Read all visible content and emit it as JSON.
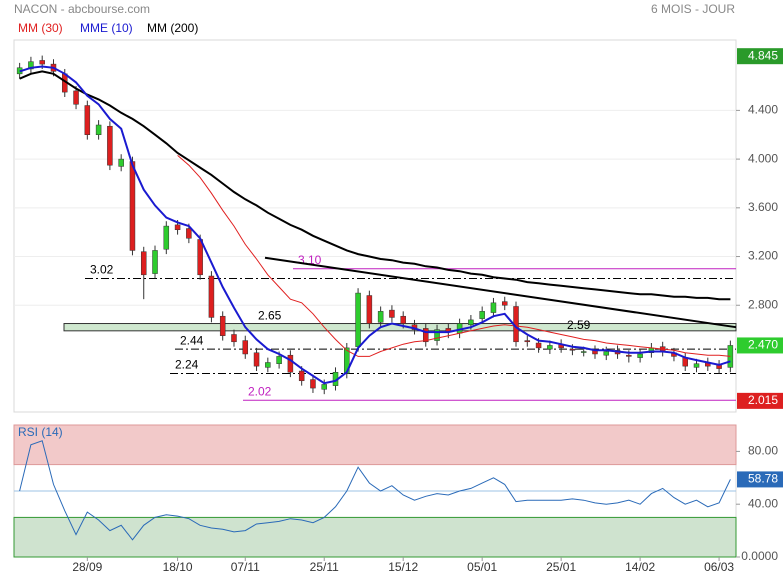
{
  "chart_data": {
    "type": "candlestick",
    "title": "NACON - abcbourse.com",
    "period": "6 MOIS - JOUR",
    "categories": [
      null,
      null,
      null,
      null,
      null,
      null,
      "28/09",
      null,
      null,
      null,
      null,
      null,
      null,
      null,
      "18/10",
      null,
      null,
      null,
      null,
      null,
      "07/11",
      null,
      null,
      null,
      null,
      null,
      null,
      "25/11",
      null,
      null,
      null,
      null,
      null,
      null,
      "15/12",
      null,
      null,
      null,
      null,
      null,
      null,
      "05/01",
      null,
      null,
      null,
      null,
      null,
      null,
      "25/01",
      null,
      null,
      null,
      null,
      null,
      null,
      "14/02",
      null,
      null,
      null,
      null,
      null,
      null,
      "06/03",
      null
    ],
    "open": [
      4.7,
      4.74,
      4.81,
      4.78,
      4.7,
      4.56,
      4.44,
      4.2,
      4.27,
      3.94,
      3.98,
      3.24,
      3.06,
      3.26,
      3.46,
      3.43,
      3.34,
      3.04,
      2.71,
      2.56,
      2.51,
      2.41,
      2.29,
      2.32,
      2.39,
      2.26,
      2.19,
      2.11,
      2.14,
      2.24,
      2.46,
      2.88,
      2.66,
      2.76,
      2.71,
      2.64,
      2.61,
      2.51,
      2.61,
      2.57,
      2.64,
      2.69,
      2.74,
      2.83,
      2.79,
      2.51,
      2.49,
      2.44,
      2.48,
      2.44,
      2.42,
      2.43,
      2.39,
      2.43,
      2.39,
      2.37,
      2.41,
      2.46,
      2.41,
      2.37,
      2.29,
      2.33,
      2.31,
      2.29
    ],
    "high": [
      4.79,
      4.84,
      4.85,
      4.82,
      4.74,
      4.6,
      4.48,
      4.32,
      4.31,
      4.04,
      4.02,
      3.28,
      3.29,
      3.49,
      3.5,
      3.47,
      3.38,
      3.08,
      2.75,
      2.6,
      2.55,
      2.45,
      2.37,
      2.42,
      2.43,
      2.3,
      2.23,
      2.19,
      2.29,
      2.49,
      2.94,
      2.92,
      2.79,
      2.8,
      2.75,
      2.68,
      2.65,
      2.64,
      2.65,
      2.69,
      2.72,
      2.79,
      2.86,
      2.87,
      2.83,
      2.55,
      2.53,
      2.51,
      2.52,
      2.48,
      2.46,
      2.47,
      2.46,
      2.47,
      2.43,
      2.44,
      2.49,
      2.5,
      2.45,
      2.41,
      2.36,
      2.37,
      2.35,
      2.51
    ],
    "low": [
      4.66,
      4.7,
      4.74,
      4.68,
      4.51,
      4.41,
      4.16,
      4.16,
      3.91,
      3.9,
      3.21,
      2.85,
      3.02,
      3.22,
      3.38,
      3.31,
      3.01,
      2.66,
      2.51,
      2.46,
      2.36,
      2.26,
      2.25,
      2.28,
      2.21,
      2.14,
      2.08,
      2.07,
      2.1,
      2.2,
      2.42,
      2.61,
      2.62,
      2.66,
      2.61,
      2.56,
      2.46,
      2.47,
      2.53,
      2.53,
      2.6,
      2.65,
      2.7,
      2.76,
      2.46,
      2.46,
      2.41,
      2.4,
      2.41,
      2.39,
      2.38,
      2.36,
      2.35,
      2.36,
      2.33,
      2.33,
      2.37,
      2.38,
      2.34,
      2.26,
      2.25,
      2.26,
      2.24,
      2.25
    ],
    "close": [
      4.75,
      4.8,
      4.78,
      4.72,
      4.55,
      4.45,
      4.2,
      4.28,
      3.95,
      4.0,
      3.25,
      3.05,
      3.25,
      3.45,
      3.42,
      3.35,
      3.05,
      2.7,
      2.55,
      2.5,
      2.4,
      2.3,
      2.33,
      2.38,
      2.25,
      2.18,
      2.12,
      2.15,
      2.25,
      2.45,
      2.9,
      2.65,
      2.75,
      2.7,
      2.65,
      2.6,
      2.5,
      2.6,
      2.58,
      2.65,
      2.68,
      2.75,
      2.82,
      2.8,
      2.5,
      2.5,
      2.45,
      2.47,
      2.45,
      2.43,
      2.42,
      2.4,
      2.42,
      2.4,
      2.38,
      2.4,
      2.45,
      2.42,
      2.38,
      2.3,
      2.32,
      2.3,
      2.28,
      2.47
    ],
    "up_color": "#2ecc2e",
    "down_color": "#dd1f1f",
    "ylim": [
      1.94,
      5.06
    ],
    "yticks": [
      {
        "value": 4.4,
        "label": "4.400"
      },
      {
        "value": 4.0,
        "label": "4.000"
      },
      {
        "value": 3.6,
        "label": "3.600"
      },
      {
        "value": 3.2,
        "label": "3.200"
      },
      {
        "value": 2.8,
        "label": "2.800"
      }
    ],
    "series": [
      {
        "name": "MM (30)",
        "color": "#e02020",
        "values": [
          null,
          null,
          null,
          null,
          null,
          null,
          null,
          null,
          null,
          null,
          null,
          null,
          null,
          null,
          4.03,
          3.95,
          3.85,
          3.72,
          3.58,
          3.45,
          3.3,
          3.18,
          3.05,
          2.95,
          2.85,
          2.82,
          2.73,
          2.62,
          2.52,
          2.43,
          2.38,
          2.38,
          2.42,
          2.45,
          2.48,
          2.5,
          2.51,
          2.53,
          2.55,
          2.57,
          2.59,
          2.61,
          2.63,
          2.64,
          2.63,
          2.62,
          2.6,
          2.58,
          2.56,
          2.54,
          2.52,
          2.51,
          2.49,
          2.48,
          2.47,
          2.46,
          2.45,
          2.44,
          2.43,
          2.41,
          2.4,
          2.39,
          2.39,
          2.38
        ]
      },
      {
        "name": "MME (10)",
        "color": "#1a1ad0",
        "values": [
          4.72,
          4.75,
          4.76,
          4.75,
          4.7,
          4.63,
          4.52,
          4.45,
          4.33,
          4.25,
          3.95,
          3.75,
          3.62,
          3.52,
          3.48,
          3.45,
          3.35,
          3.15,
          2.95,
          2.78,
          2.62,
          2.52,
          2.44,
          2.4,
          2.35,
          2.28,
          2.22,
          2.16,
          2.18,
          2.25,
          2.45,
          2.55,
          2.62,
          2.65,
          2.63,
          2.61,
          2.58,
          2.58,
          2.58,
          2.6,
          2.62,
          2.66,
          2.71,
          2.73,
          2.62,
          2.56,
          2.51,
          2.5,
          2.48,
          2.46,
          2.45,
          2.43,
          2.43,
          2.42,
          2.41,
          2.41,
          2.42,
          2.42,
          2.41,
          2.37,
          2.35,
          2.33,
          2.31,
          2.34
        ]
      },
      {
        "name": "MM (200)",
        "color": "#000000",
        "values": [
          4.66,
          4.7,
          4.72,
          4.7,
          4.64,
          4.58,
          4.53,
          4.49,
          4.44,
          4.38,
          4.33,
          4.27,
          4.2,
          4.13,
          4.05,
          3.99,
          3.93,
          3.87,
          3.8,
          3.73,
          3.67,
          3.62,
          3.56,
          3.51,
          3.46,
          3.42,
          3.37,
          3.33,
          3.29,
          3.25,
          3.22,
          3.2,
          3.18,
          3.17,
          3.15,
          3.14,
          3.12,
          3.11,
          3.09,
          3.08,
          3.06,
          3.05,
          3.03,
          3.02,
          3.01,
          2.99,
          2.98,
          2.97,
          2.96,
          2.95,
          2.94,
          2.93,
          2.92,
          2.91,
          2.9,
          2.89,
          2.89,
          2.88,
          2.87,
          2.87,
          2.86,
          2.86,
          2.85,
          2.85
        ]
      }
    ],
    "levels": [
      {
        "value": 3.02,
        "color": "#000000"
      },
      {
        "value": 2.44,
        "color": "#000000"
      },
      {
        "value": 2.24,
        "color": "#000000"
      },
      {
        "value": 3.1,
        "label": "3.10",
        "color": "#c020c0"
      },
      {
        "value": 2.02,
        "label": "2.02",
        "color": "#c020c0"
      }
    ],
    "band": {
      "low": 2.59,
      "high": 2.65,
      "color": "#cfe8cf"
    },
    "trendline": {
      "values": [
        3.19,
        2.62
      ],
      "color": "#000000"
    },
    "price_tags": [
      {
        "value": 4.845,
        "color": "#2a9a2a"
      },
      {
        "value": 2.47,
        "label": "2.470",
        "color": "#2ecc2e"
      },
      {
        "value": 2.015,
        "color": "#dd1f1f"
      }
    ],
    "rsi": {
      "name": "RSI (14)",
      "color": "#2a6ab8",
      "values": [
        50,
        85,
        88,
        55,
        35,
        17,
        34,
        28,
        20,
        24,
        13,
        24,
        30,
        32,
        31,
        29,
        24,
        22,
        21,
        19,
        20,
        25,
        26,
        27,
        29,
        28,
        26,
        30,
        38,
        50,
        68,
        56,
        50,
        54,
        47,
        43,
        46,
        48,
        47,
        50,
        52,
        56,
        60,
        55,
        42,
        43,
        43,
        43,
        43,
        44,
        43,
        41,
        40,
        41,
        43,
        40,
        48,
        52,
        45,
        40,
        43,
        38,
        41,
        58.78
      ],
      "ylim": [
        0,
        100
      ],
      "yticks": [
        {
          "value": 80,
          "label": "80.00"
        },
        {
          "value": 40,
          "label": "40.00"
        },
        {
          "value": 0,
          "label": "0.0000"
        }
      ],
      "overbought": 70,
      "oversold": 30,
      "midline": 50,
      "last_tag": {
        "value": 58.78,
        "color": "#2a6ab8"
      }
    }
  }
}
